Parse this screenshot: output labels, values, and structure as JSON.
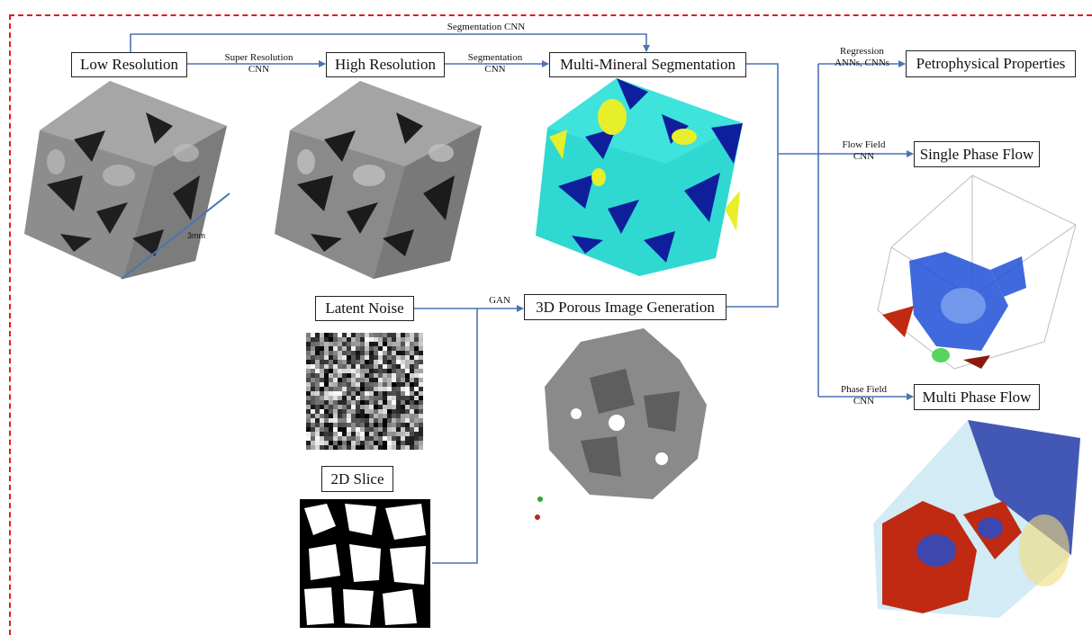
{
  "colors": {
    "frame": "#e21b1b",
    "arrow": "#4a74b4",
    "rock_gray": "#8d8d8d",
    "pore": "#1f1f1f",
    "mineral_cyan": "#2fd9d2",
    "mineral_blue": "#0f1f9c",
    "mineral_yellow": "#e6ef2a",
    "flow_blue": "#1e4fd6",
    "flow_red": "#c02a12"
  },
  "nodes": {
    "low_resolution": "Low Resolution",
    "high_resolution": "High Resolution",
    "multi_mineral_segmentation": "Multi-Mineral Segmentation",
    "petrophysical_properties": "Petrophysical Properties",
    "single_phase_flow": "Single Phase Flow",
    "multi_phase_flow": "Multi Phase Flow",
    "latent_noise": "Latent Noise",
    "porous_image_generation": "3D Porous Image Generation",
    "slice_2d": "2D Slice"
  },
  "edges": {
    "segmentation_cnn_top": "Segmentation CNN",
    "super_resolution_line1": "Super Resolution",
    "super_resolution_line2": "CNN",
    "segmentation_line1": "Segmentation",
    "segmentation_line2": "CNN",
    "regression_line1": "Regression",
    "regression_line2": "ANNs, CNNs",
    "flow_field_line1": "Flow Field",
    "flow_field_line2": "CNN",
    "phase_field_line1": "Phase Field",
    "phase_field_line2": "CNN",
    "gan": "GAN"
  },
  "scale_bar": "3mm"
}
